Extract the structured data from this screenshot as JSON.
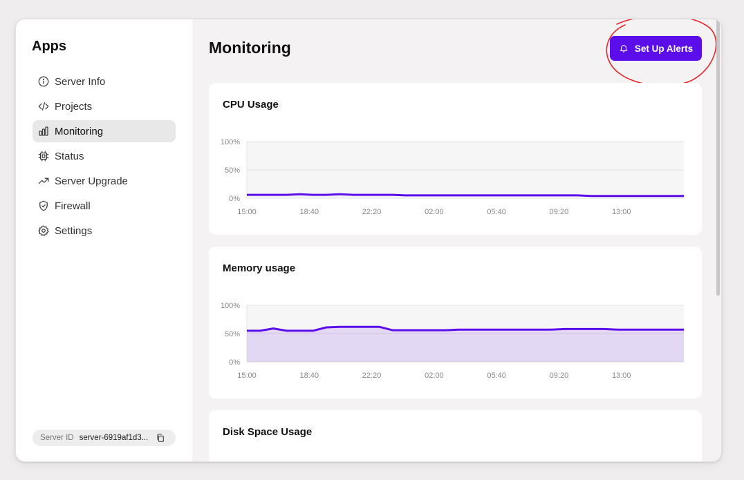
{
  "sidebar": {
    "title": "Apps",
    "items": [
      {
        "label": "Server Info",
        "icon": "info-icon",
        "active": false
      },
      {
        "label": "Projects",
        "icon": "code-icon",
        "active": false
      },
      {
        "label": "Monitoring",
        "icon": "bar-chart-icon",
        "active": true
      },
      {
        "label": "Status",
        "icon": "chip-icon",
        "active": false
      },
      {
        "label": "Server Upgrade",
        "icon": "trending-up-icon",
        "active": false
      },
      {
        "label": "Firewall",
        "icon": "shield-icon",
        "active": false
      },
      {
        "label": "Settings",
        "icon": "gear-icon",
        "active": false
      }
    ],
    "server_id": {
      "label": "Server ID",
      "value": "server-6919af1d3..."
    }
  },
  "main": {
    "title": "Monitoring",
    "alerts_button": "Set Up Alerts",
    "accent_color": "#5b0eea",
    "annotation_color": "#e8262b"
  },
  "chart_data": [
    {
      "type": "line",
      "title": "CPU Usage",
      "x_ticks": [
        "15:00",
        "18:40",
        "22:20",
        "02:00",
        "05:40",
        "09:20",
        "13:00"
      ],
      "y_ticks": [
        "0%",
        "50%",
        "100%"
      ],
      "ylim": [
        0,
        100
      ],
      "series": [
        {
          "values": [
            6,
            6,
            6,
            6,
            7,
            6,
            6,
            7,
            6,
            6,
            6,
            6,
            5,
            5,
            5,
            5,
            5,
            5,
            5,
            5,
            5,
            5,
            5,
            5,
            5,
            5,
            4,
            4,
            4,
            4,
            4,
            4,
            4,
            4
          ]
        }
      ]
    },
    {
      "type": "area",
      "title": "Memory usage",
      "x_ticks": [
        "15:00",
        "18:40",
        "22:20",
        "02:00",
        "05:40",
        "09:20",
        "13:00"
      ],
      "y_ticks": [
        "0%",
        "50%",
        "100%"
      ],
      "ylim": [
        0,
        100
      ],
      "series": [
        {
          "values": [
            55,
            55,
            59,
            55,
            55,
            55,
            61,
            62,
            62,
            62,
            62,
            56,
            56,
            56,
            56,
            56,
            57,
            57,
            57,
            57,
            57,
            57,
            57,
            57,
            58,
            58,
            58,
            58,
            57,
            57,
            57,
            57,
            57,
            57
          ]
        }
      ]
    },
    {
      "type": "line",
      "title": "Disk Space Usage",
      "series": []
    }
  ]
}
